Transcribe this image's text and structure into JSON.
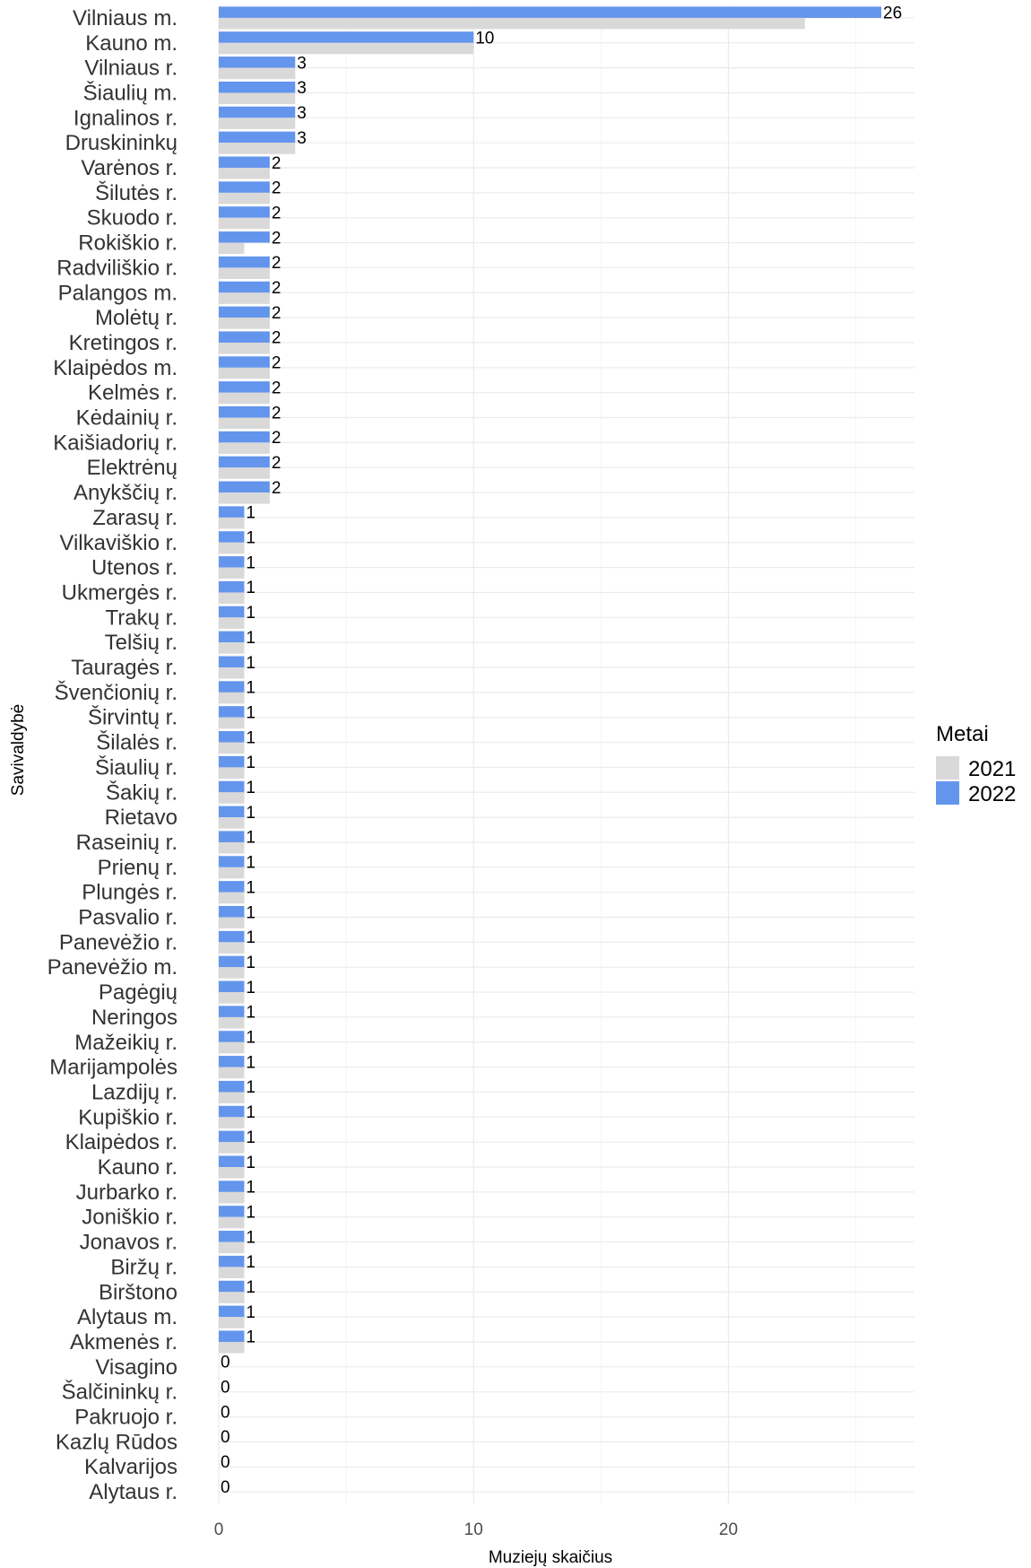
{
  "chart_data": {
    "type": "bar",
    "orientation": "horizontal",
    "xlabel": "Muziejų skaičius",
    "ylabel": "Savivaldybė",
    "xlim": [
      0,
      27.3
    ],
    "x_ticks": [
      0,
      10,
      20
    ],
    "grid": true,
    "legend": {
      "title": "Metai",
      "placement": "right",
      "entries": [
        {
          "name": "2021",
          "color": "#d9d9d9"
        },
        {
          "name": "2022",
          "color": "#6495ed"
        }
      ]
    },
    "categories": [
      "Vilniaus m.",
      "Kauno m.",
      "Vilniaus r.",
      "Šiaulių m.",
      "Ignalinos r.",
      "Druskininkų",
      "Varėnos r.",
      "Šilutės r.",
      "Skuodo r.",
      "Rokiškio r.",
      "Radviliškio r.",
      "Palangos m.",
      "Molėtų r.",
      "Kretingos r.",
      "Klaipėdos m.",
      "Kelmės r.",
      "Kėdainių r.",
      "Kaišiadorių r.",
      "Elektrėnų",
      "Anykščių r.",
      "Zarasų r.",
      "Vilkaviškio r.",
      "Utenos r.",
      "Ukmergės r.",
      "Trakų r.",
      "Telšių r.",
      "Tauragės r.",
      "Švenčionių r.",
      "Širvintų r.",
      "Šilalės r.",
      "Šiaulių r.",
      "Šakių r.",
      "Rietavo",
      "Raseinių r.",
      "Prienų r.",
      "Plungės r.",
      "Pasvalio r.",
      "Panevėžio r.",
      "Panevėžio m.",
      "Pagėgių",
      "Neringos",
      "Mažeikių r.",
      "Marijampolės",
      "Lazdijų r.",
      "Kupiškio r.",
      "Klaipėdos r.",
      "Kauno r.",
      "Jurbarko r.",
      "Joniškio r.",
      "Jonavos r.",
      "Biržų r.",
      "Birštono",
      "Alytaus m.",
      "Akmenės r.",
      "Visagino",
      "Šalčininkų r.",
      "Pakruojo r.",
      "Kazlų Rūdos",
      "Kalvarijos",
      "Alytaus r."
    ],
    "series": [
      {
        "name": "2022",
        "color": "#6495ed",
        "values": [
          26,
          10,
          3,
          3,
          3,
          3,
          2,
          2,
          2,
          2,
          2,
          2,
          2,
          2,
          2,
          2,
          2,
          2,
          2,
          2,
          1,
          1,
          1,
          1,
          1,
          1,
          1,
          1,
          1,
          1,
          1,
          1,
          1,
          1,
          1,
          1,
          1,
          1,
          1,
          1,
          1,
          1,
          1,
          1,
          1,
          1,
          1,
          1,
          1,
          1,
          1,
          1,
          1,
          1,
          0,
          0,
          0,
          0,
          0,
          0
        ]
      },
      {
        "name": "2021",
        "color": "#d9d9d9",
        "values": [
          23,
          10,
          3,
          3,
          3,
          3,
          2,
          2,
          2,
          1,
          2,
          2,
          2,
          2,
          2,
          2,
          2,
          2,
          2,
          2,
          1,
          1,
          1,
          1,
          1,
          1,
          1,
          1,
          1,
          1,
          1,
          1,
          1,
          1,
          1,
          1,
          1,
          1,
          1,
          1,
          1,
          1,
          1,
          1,
          1,
          1,
          1,
          1,
          1,
          1,
          1,
          1,
          1,
          1,
          0,
          0,
          0,
          0,
          0,
          0
        ]
      }
    ],
    "data_labels_series": "2022"
  }
}
